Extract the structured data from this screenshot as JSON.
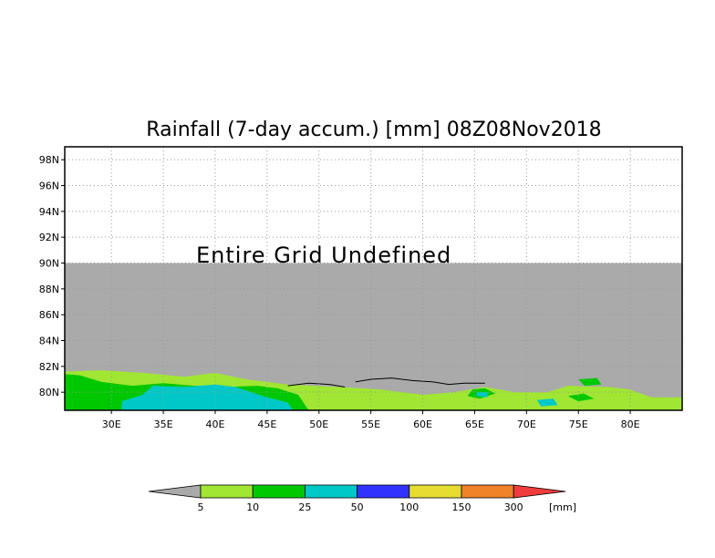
{
  "chart_data": {
    "type": "heatmap",
    "title": "Rainfall (7-day accum.) [mm] 08Z08Nov2018",
    "xlabel": "",
    "ylabel": "",
    "x_range": [
      25.5,
      85
    ],
    "y_range": [
      78.6,
      99
    ],
    "x_ticks": [
      "30E",
      "35E",
      "40E",
      "45E",
      "50E",
      "55E",
      "60E",
      "65E",
      "70E",
      "75E",
      "80E"
    ],
    "x_tick_values": [
      30,
      35,
      40,
      45,
      50,
      55,
      60,
      65,
      70,
      75,
      80
    ],
    "y_ticks": [
      "80N",
      "82N",
      "84N",
      "86N",
      "88N",
      "90N",
      "92N",
      "94N",
      "96N",
      "98N"
    ],
    "y_tick_values": [
      80,
      82,
      84,
      86,
      88,
      90,
      92,
      94,
      96,
      98
    ],
    "grid": true,
    "undefined_region": {
      "lat_from": 78.6,
      "lat_to": 90,
      "color": "#aaaaaa"
    },
    "undefined_message": "Entire Grid Undefined",
    "colorbar": {
      "labels": [
        "5",
        "10",
        "25",
        "50",
        "100",
        "150",
        "300"
      ],
      "unit": "[mm]",
      "colors": [
        "#aaaaaa",
        "#a0e632",
        "#00c800",
        "#00c8c8",
        "#3232ff",
        "#e6dc32",
        "#f08228",
        "#f03c3c"
      ]
    },
    "rain_areas": [
      {
        "category": "5-10",
        "color": "#a0e632",
        "polygon": [
          [
            25.5,
            81.6
          ],
          [
            29,
            81.7
          ],
          [
            33,
            81.5
          ],
          [
            37,
            81.2
          ],
          [
            40,
            81.5
          ],
          [
            43,
            81.0
          ],
          [
            47,
            80.6
          ],
          [
            52,
            80.4
          ],
          [
            56,
            80.2
          ],
          [
            60,
            79.8
          ],
          [
            63,
            80.0
          ],
          [
            66,
            80.4
          ],
          [
            69,
            80.0
          ],
          [
            72,
            80.0
          ],
          [
            74,
            80.5
          ],
          [
            78,
            80.4
          ],
          [
            80,
            80.2
          ],
          [
            82,
            79.6
          ],
          [
            85,
            79.6
          ],
          [
            85,
            78.6
          ],
          [
            25.5,
            78.6
          ]
        ]
      },
      {
        "category": "10-25",
        "color": "#00c800",
        "polygon": [
          [
            25.5,
            81.4
          ],
          [
            27,
            81.3
          ],
          [
            29,
            80.8
          ],
          [
            32,
            80.5
          ],
          [
            35,
            80.7
          ],
          [
            38,
            80.5
          ],
          [
            41,
            80.4
          ],
          [
            44,
            80.5
          ],
          [
            46,
            80.3
          ],
          [
            48,
            79.8
          ],
          [
            49,
            78.6
          ],
          [
            25.5,
            78.6
          ]
        ]
      },
      {
        "category": "10-25",
        "color": "#00c800",
        "polygon": [
          [
            64.8,
            80.2
          ],
          [
            66,
            80.3
          ],
          [
            67,
            79.9
          ],
          [
            65.5,
            79.5
          ],
          [
            64.3,
            79.7
          ]
        ]
      },
      {
        "category": "10-25",
        "color": "#00c800",
        "polygon": [
          [
            75,
            81.0
          ],
          [
            76.8,
            81.1
          ],
          [
            77.2,
            80.6
          ],
          [
            75.6,
            80.5
          ]
        ]
      },
      {
        "category": "10-25",
        "color": "#00c800",
        "polygon": [
          [
            74,
            79.7
          ],
          [
            75.5,
            79.9
          ],
          [
            76.5,
            79.5
          ],
          [
            75,
            79.3
          ]
        ]
      },
      {
        "category": "25-50",
        "color": "#00c8c8",
        "polygon": [
          [
            34,
            80.5
          ],
          [
            37,
            80.4
          ],
          [
            40,
            80.6
          ],
          [
            42,
            80.4
          ],
          [
            43.5,
            80.0
          ],
          [
            45,
            79.6
          ],
          [
            47,
            79.2
          ],
          [
            47.5,
            78.6
          ],
          [
            31,
            78.6
          ],
          [
            31,
            79.3
          ],
          [
            33,
            79.8
          ]
        ]
      },
      {
        "category": "25-50",
        "color": "#00c8c8",
        "polygon": [
          [
            65.2,
            80.0
          ],
          [
            66.3,
            80.0
          ],
          [
            66.2,
            79.6
          ],
          [
            65.2,
            79.7
          ]
        ]
      },
      {
        "category": "25-50",
        "color": "#00c8c8",
        "polygon": [
          [
            71,
            79.4
          ],
          [
            72.6,
            79.5
          ],
          [
            73,
            79.0
          ],
          [
            71.4,
            78.9
          ]
        ]
      }
    ]
  }
}
